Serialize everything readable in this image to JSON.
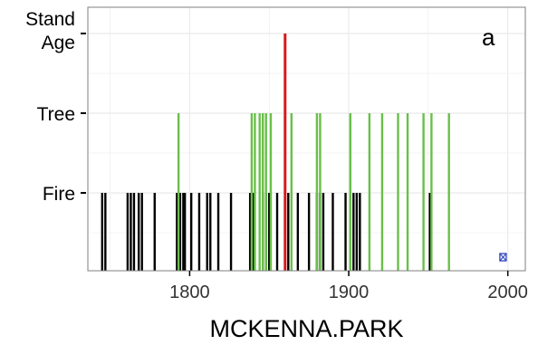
{
  "chart_data": {
    "type": "scatter",
    "title": "",
    "panel_label": "a",
    "xlabel": "MCKENNA.PARK",
    "ylabel": "",
    "xlim": [
      1736,
      2011
    ],
    "x_ticks": [
      1800,
      1900,
      2000
    ],
    "y_categories": [
      "Fire",
      "Tree",
      "Stand Age"
    ],
    "y_tick_labels": [
      [
        "Fire"
      ],
      [
        "Tree"
      ],
      [
        "Stand",
        "Age"
      ]
    ],
    "grid": true,
    "background": "#ffffff",
    "series": [
      {
        "category": "Fire",
        "color": "#000000",
        "x": [
          1745,
          1747,
          1761,
          1763,
          1765,
          1768,
          1770,
          1778,
          1792,
          1794,
          1796,
          1797,
          1801,
          1806,
          1811,
          1813,
          1818,
          1826,
          1838,
          1840,
          1846,
          1848,
          1850,
          1855,
          1862,
          1868,
          1875,
          1880,
          1882,
          1884,
          1890,
          1898,
          1903,
          1905,
          1907,
          1951
        ]
      },
      {
        "category": "Tree",
        "color": "#6abf4b",
        "x": [
          1793,
          1839,
          1841,
          1844,
          1846,
          1848,
          1851,
          1860,
          1864,
          1880,
          1882,
          1901,
          1913,
          1921,
          1931,
          1937,
          1947,
          1952,
          1963
        ]
      },
      {
        "category": "Stand Age",
        "color": "#d7191c",
        "x": [
          1860
        ]
      }
    ],
    "marker": {
      "x": 1997,
      "color": "#2b3fbf",
      "glyph": "⊠"
    }
  }
}
